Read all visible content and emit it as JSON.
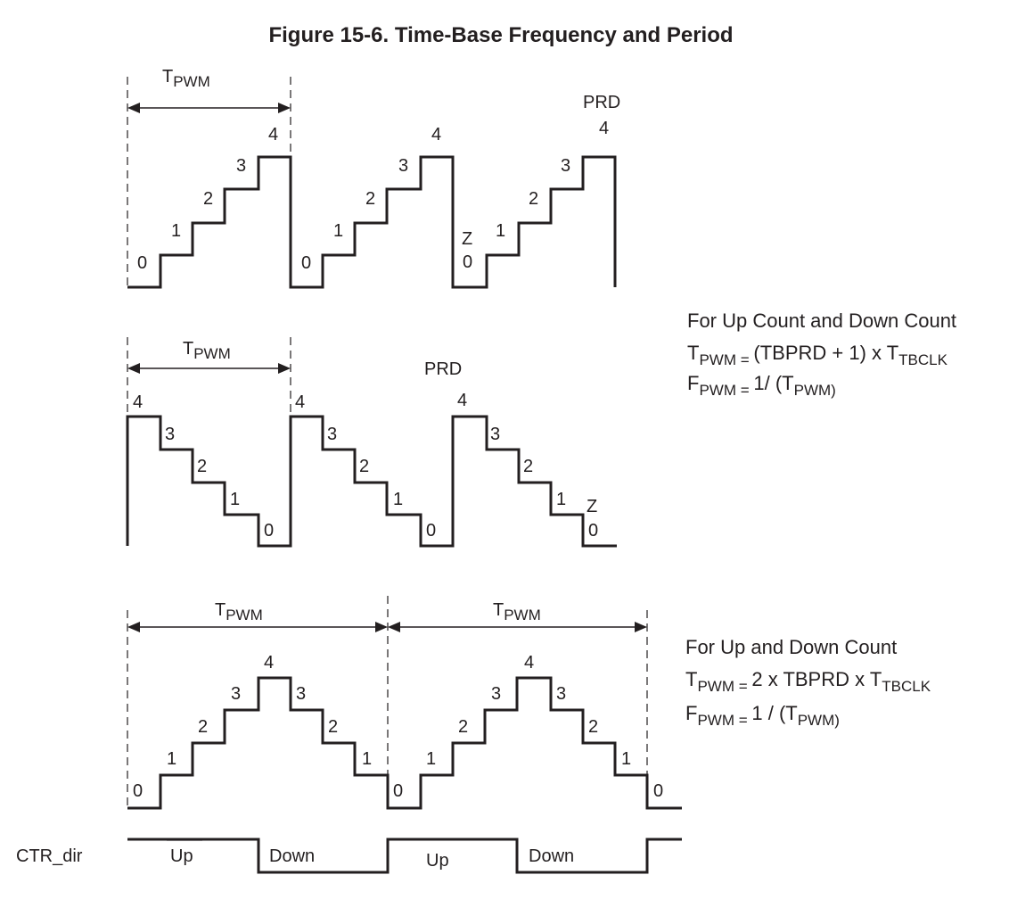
{
  "title": "Figure 15-6. Time-Base Frequency and Period",
  "period_t": "T",
  "period_sub": "PWM",
  "prd_label": "PRD",
  "z_label": "Z",
  "levels": [
    "0",
    "1",
    "2",
    "3",
    "4"
  ],
  "ctr_dir": {
    "label": "CTR_dir",
    "up": "Up",
    "down": "Down"
  },
  "formula_count": {
    "heading": "For Up Count and Down Count",
    "line1": {
      "t": "T",
      "sub1": "PWM = ",
      "expr": "(TBPRD + 1) x T",
      "sub2": "TBCLK"
    },
    "line2": {
      "f": "F",
      "sub1": "PWM = ",
      "expr": "1/ (T",
      "sub2": "PWM)"
    }
  },
  "formula_updown": {
    "heading": "For Up and Down Count",
    "line1": {
      "t": "T",
      "sub1": "PWM = ",
      "expr": "2 x TBPRD x T",
      "sub2": "TBCLK"
    },
    "line2": {
      "f": "F",
      "sub1": "PWM = ",
      "expr": "1 / (T",
      "sub2": "PWM)"
    }
  }
}
